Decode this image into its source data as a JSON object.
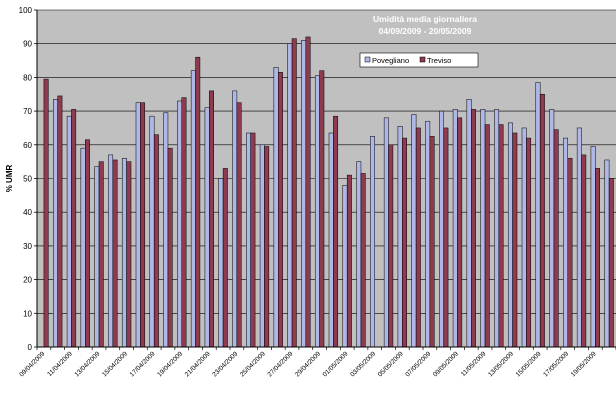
{
  "chart_data": {
    "type": "bar",
    "title": "Umidità media giornaliera",
    "subtitle": "04/09/2009  -  20/05/2009",
    "ylabel": "% UMR",
    "xlabel": "",
    "ylim": [
      0,
      100
    ],
    "yticks": [
      0,
      10,
      20,
      30,
      40,
      50,
      60,
      70,
      80,
      90,
      100
    ],
    "grid": true,
    "legend_position": "top-right",
    "colors": {
      "plot_bg": "#c0c0c0",
      "series1": "#aeb7e6",
      "series2": "#8e3b4f",
      "title": "#ffffff"
    },
    "x_tick_labels": [
      "09/04/2009",
      "11/04/2009",
      "13/04/2009",
      "15/04/2009",
      "17/04/2009",
      "19/04/2009",
      "21/04/2009",
      "23/04/2009",
      "25/04/2009",
      "27/04/2009",
      "29/04/2009",
      "01/05/2009",
      "03/05/2009",
      "05/05/2009",
      "07/05/2009",
      "09/05/2009",
      "11/05/2009",
      "13/05/2009",
      "15/05/2009",
      "17/05/2009",
      "19/05/2009"
    ],
    "categories": [
      "09/04",
      "10/04",
      "11/04",
      "12/04",
      "13/04",
      "14/04",
      "15/04",
      "16/04",
      "17/04",
      "18/04",
      "19/04",
      "20/04",
      "21/04",
      "22/04",
      "23/04",
      "24/04",
      "25/04",
      "26/04",
      "27/04",
      "28/04",
      "29/04",
      "30/04",
      "01/05",
      "02/05",
      "03/05",
      "04/05",
      "05/05",
      "06/05",
      "07/05",
      "08/05",
      "09/05",
      "10/05",
      "11/05",
      "12/05",
      "13/05",
      "14/05",
      "15/05",
      "16/05",
      "17/05",
      "18/05",
      "19/05",
      "20/05"
    ],
    "series": [
      {
        "name": "Povegliano",
        "values": [
          null,
          73.5,
          68.5,
          59,
          53.5,
          57,
          56,
          72.5,
          68.5,
          69.5,
          73,
          82,
          71,
          50,
          76,
          63.5,
          60,
          83,
          90,
          91,
          80.5,
          63.5,
          48,
          55,
          62.5,
          68,
          65.5,
          69,
          67,
          70,
          70.5,
          73.5,
          70.5,
          70.5,
          66.5,
          65,
          78.5,
          70.5,
          62,
          65,
          59.5,
          55.5
        ]
      },
      {
        "name": "Treviso",
        "values": [
          79.5,
          74.5,
          70.5,
          61.5,
          55,
          55.5,
          55,
          72.5,
          63,
          59,
          74,
          86,
          76,
          53,
          72.5,
          63.5,
          59.5,
          81.5,
          91.5,
          92,
          82,
          68.5,
          51,
          51.5,
          null,
          60,
          62,
          65,
          62.5,
          65,
          68,
          70.5,
          66,
          66,
          63.5,
          62,
          75,
          64.5,
          56,
          57,
          53,
          50
        ]
      }
    ]
  }
}
